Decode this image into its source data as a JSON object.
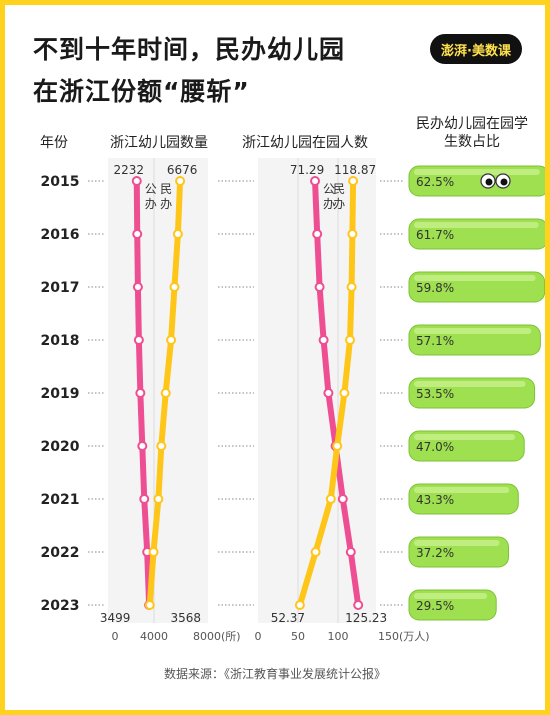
{
  "header": {
    "title_line1": "不到十年时间，民办幼儿园",
    "title_line2": "在浙江份额“腰斩”",
    "logo": "澎湃·美数课"
  },
  "columns": {
    "year": "年份",
    "count": "浙江幼儿园数量",
    "enroll": "浙江幼儿园在园人数",
    "share": "民办幼儿园在园学生数占比"
  },
  "series_labels": {
    "public": "公办",
    "private": "民办"
  },
  "colors": {
    "public": "#ee4f93",
    "private": "#ffc61a",
    "pill": "#9ee050",
    "frame": "#ffd21e"
  },
  "chart_data": [
    {
      "type": "line",
      "categories": [
        "2015",
        "2016",
        "2017",
        "2018",
        "2019",
        "2020",
        "2021",
        "2022",
        "2023"
      ],
      "unit": "(所)",
      "xlim": [
        0,
        8000
      ],
      "ticks": [
        "0",
        "4000",
        "8000(所)"
      ],
      "series": [
        {
          "name": "公办",
          "values": [
            2232,
            2280,
            2350,
            2450,
            2600,
            2800,
            3000,
            3300,
            3499
          ]
        },
        {
          "name": "民办",
          "values": [
            6676,
            6450,
            6100,
            5750,
            5200,
            4750,
            4450,
            3950,
            3568
          ]
        }
      ],
      "labels": {
        "start_public": "2232",
        "start_private": "6676",
        "end_public": "3499",
        "end_private": "3568"
      }
    },
    {
      "type": "line",
      "categories": [
        "2015",
        "2016",
        "2017",
        "2018",
        "2019",
        "2020",
        "2021",
        "2022",
        "2023"
      ],
      "unit": "(万人)",
      "xlim": [
        0,
        150
      ],
      "ticks": [
        "0",
        "50",
        "100",
        "150(万人)"
      ],
      "series": [
        {
          "name": "公办",
          "values": [
            71.29,
            74,
            77,
            82,
            88,
            97,
            106,
            116,
            125.23
          ]
        },
        {
          "name": "民办",
          "values": [
            118.87,
            118,
            117,
            115,
            108,
            99,
            91,
            72,
            52.37
          ]
        }
      ],
      "labels": {
        "start_public": "71.29",
        "start_private": "118.87",
        "end_public": "125.23",
        "end_private": "52.37"
      }
    },
    {
      "type": "bar",
      "categories": [
        "2015",
        "2016",
        "2017",
        "2018",
        "2019",
        "2020",
        "2021",
        "2022",
        "2023"
      ],
      "values": [
        62.5,
        61.7,
        59.8,
        57.1,
        53.5,
        47.0,
        43.3,
        37.2,
        29.5
      ],
      "value_labels": [
        "62.5%",
        "61.7%",
        "59.8%",
        "57.1%",
        "53.5%",
        "47.0%",
        "43.3%",
        "37.2%",
        "29.5%"
      ]
    }
  ],
  "source": "数据来源：《浙江教育事业发展统计公报》"
}
